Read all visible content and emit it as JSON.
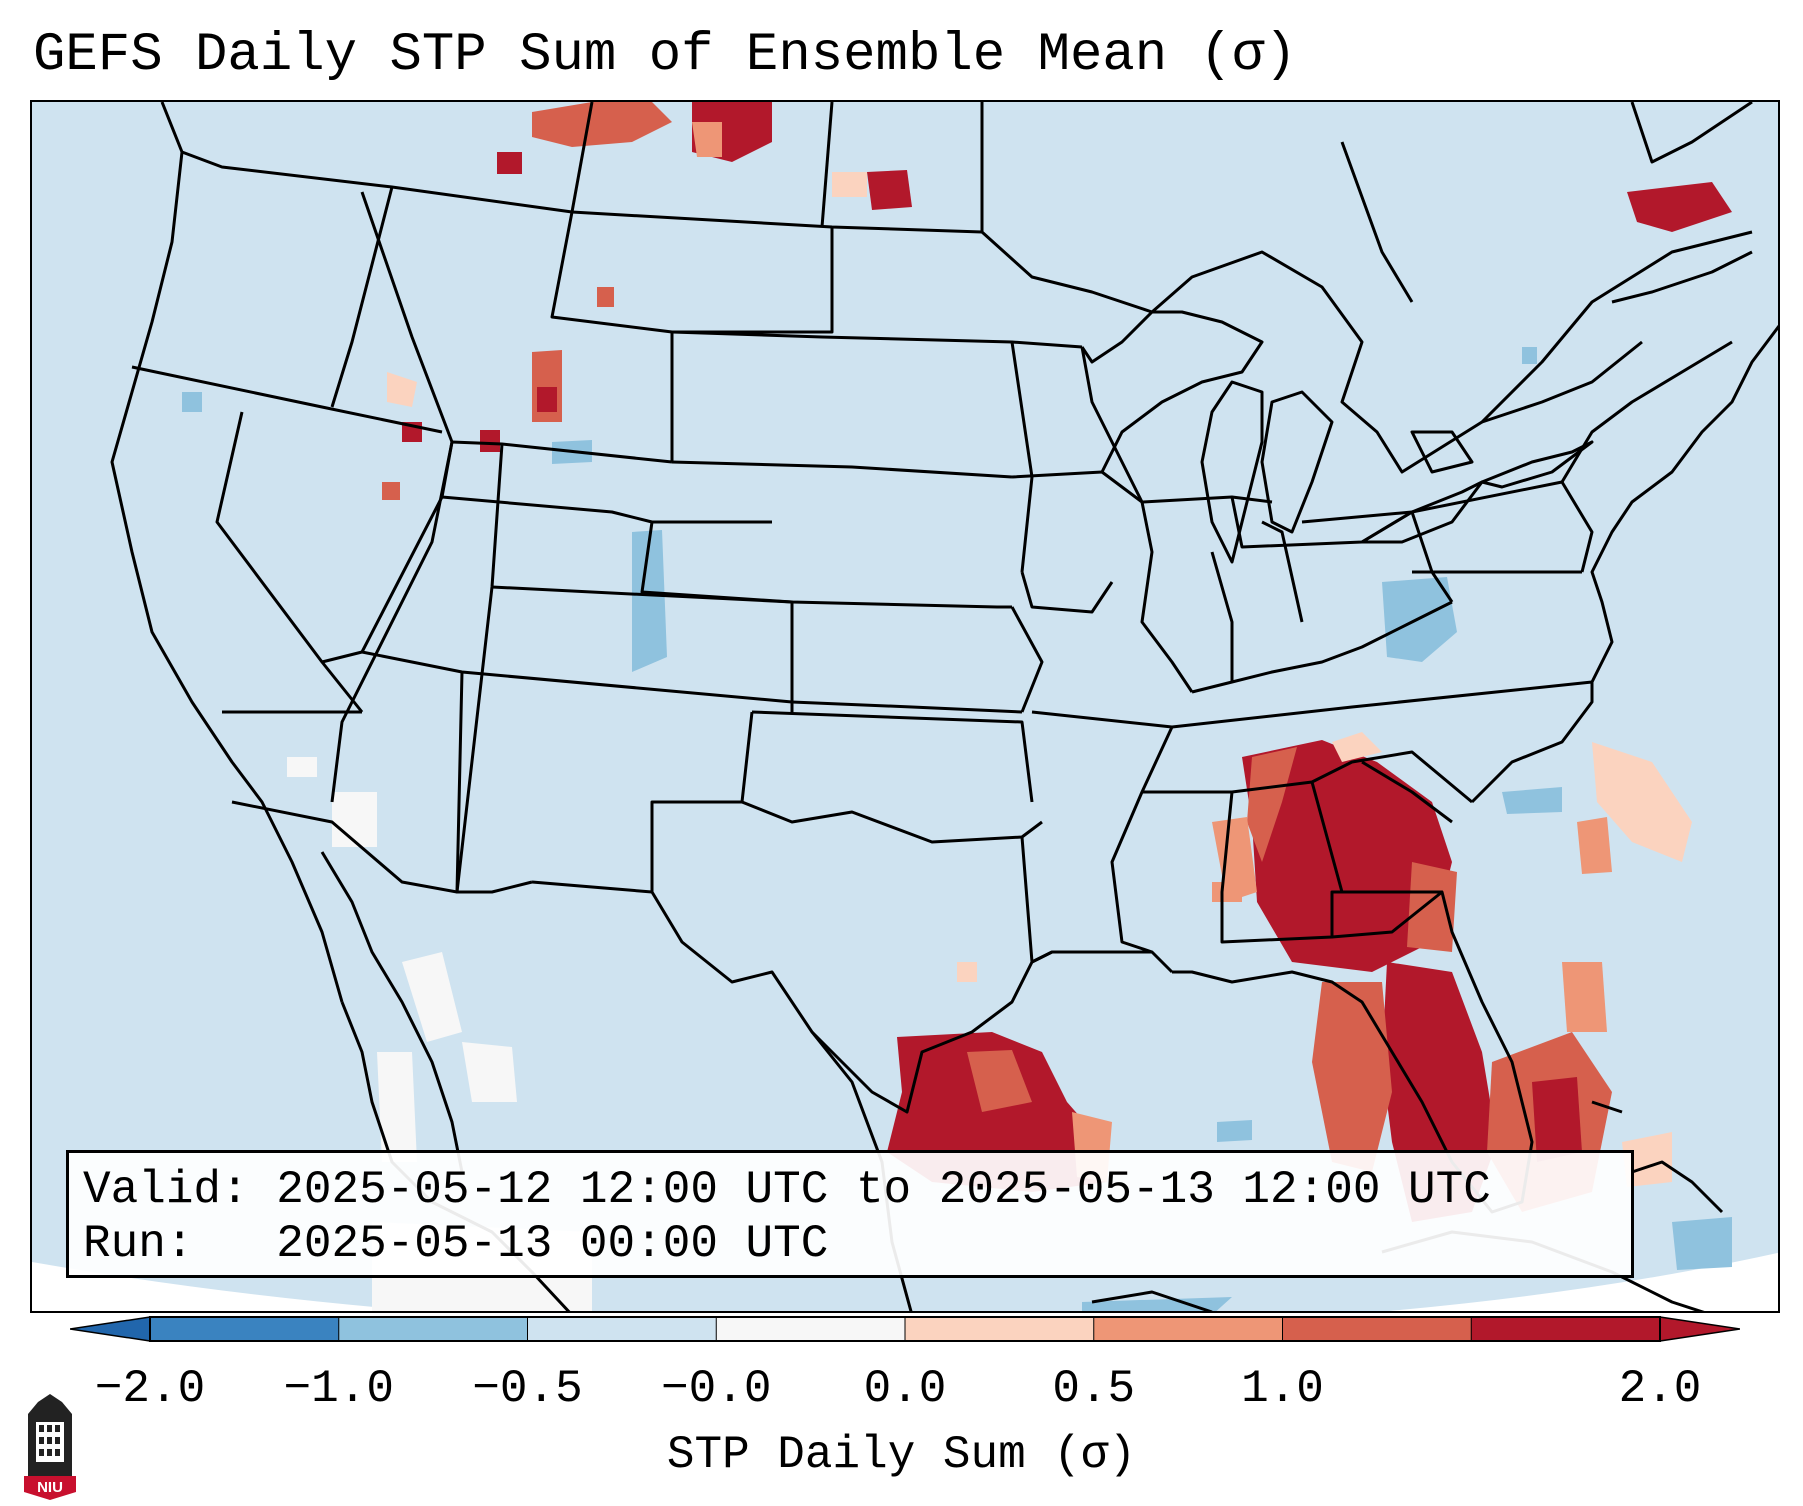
{
  "title": "GEFS Daily STP Sum of Ensemble Mean (σ)",
  "info": {
    "valid_label": "Valid:",
    "valid_value": "2025-05-12 12:00 UTC to 2025-05-13 12:00 UTC",
    "run_label": "Run:",
    "run_value": "2025-05-13 00:00 UTC"
  },
  "colorbar": {
    "label": "STP Daily Sum (σ)",
    "ticks": [
      "−2.0",
      "−1.0",
      "−0.5",
      "−0.0",
      "0.0",
      "0.5",
      "1.0",
      "2.0"
    ],
    "colors": [
      "#3a83c0",
      "#8fc2de",
      "#cfe3f0",
      "#f7f7f7",
      "#fbd3bf",
      "#ee9676",
      "#d6604d",
      "#b2182b"
    ],
    "extend_low_color": "#2166ac",
    "extend_high_color": "#b2182b"
  },
  "map": {
    "background_color": "#cfe3f0",
    "line_color": "#000000"
  },
  "logo": {
    "text": "NIU",
    "color": "#c8102e"
  }
}
